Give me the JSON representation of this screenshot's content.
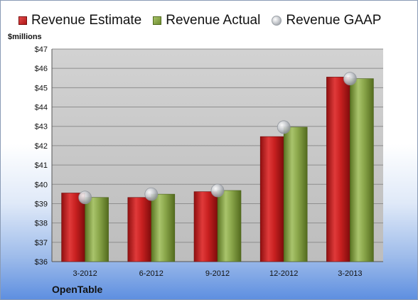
{
  "legend": {
    "estimate": "Revenue Estimate",
    "actual": "Revenue Actual",
    "gaap": "Revenue GAAP"
  },
  "units_label": "$millions",
  "brand_label": "OpenTable",
  "colors": {
    "estimate": "#c0201f",
    "actual": "#8aa64a",
    "gaap": "#c4c7cc",
    "plot_bg": "#c6c6c6",
    "grid": "#8e8e8e"
  },
  "chart_data": {
    "type": "bar",
    "categories": [
      "3-2012",
      "6-2012",
      "9-2012",
      "12-2012",
      "3-2013"
    ],
    "series": [
      {
        "name": "Revenue Estimate",
        "values": [
          39.55,
          39.32,
          39.62,
          42.47,
          45.55
        ]
      },
      {
        "name": "Revenue Actual",
        "values": [
          39.32,
          39.49,
          39.68,
          42.96,
          45.47
        ]
      },
      {
        "name": "Revenue GAAP",
        "values": [
          39.32,
          39.49,
          39.68,
          42.96,
          45.47
        ],
        "style": "marker"
      }
    ],
    "ylabel": "$millions",
    "ylim": [
      36,
      47
    ],
    "yticks": [
      "$36",
      "$37",
      "$38",
      "$39",
      "$40",
      "$41",
      "$42",
      "$43",
      "$44",
      "$45",
      "$46",
      "$47"
    ],
    "grid": true,
    "legend_position": "top"
  }
}
